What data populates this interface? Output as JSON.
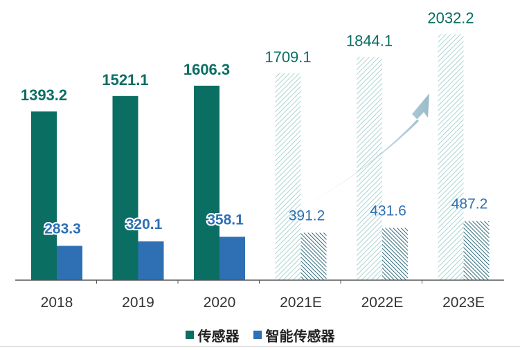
{
  "chart_data": {
    "type": "bar",
    "categories": [
      "2018",
      "2019",
      "2020",
      "2021E",
      "2022E",
      "2023E"
    ],
    "estimated_categories": [
      "2021E",
      "2022E",
      "2023E"
    ],
    "series": [
      {
        "name": "传感器",
        "values": [
          1393.2,
          1521.1,
          1606.3,
          1709.1,
          1844.1,
          2032.2
        ],
        "labels": [
          "1393.2",
          "1521.1",
          "1606.3",
          "1709.1",
          "1844.1",
          "2032.2"
        ],
        "color": "#0b6e63"
      },
      {
        "name": "智能传感器",
        "values": [
          283.3,
          320.1,
          358.1,
          391.2,
          431.6,
          487.2
        ],
        "labels": [
          "283.3",
          "320.1",
          "358.1",
          "391.2",
          "431.6",
          "487.2"
        ],
        "color": "#2f6fb3"
      }
    ],
    "title": "",
    "xlabel": "",
    "ylabel": "",
    "ylim": [
      0,
      2200
    ],
    "grid": false,
    "legend": "bottom-center",
    "annotations": [
      "upward-trend-arrow"
    ]
  }
}
